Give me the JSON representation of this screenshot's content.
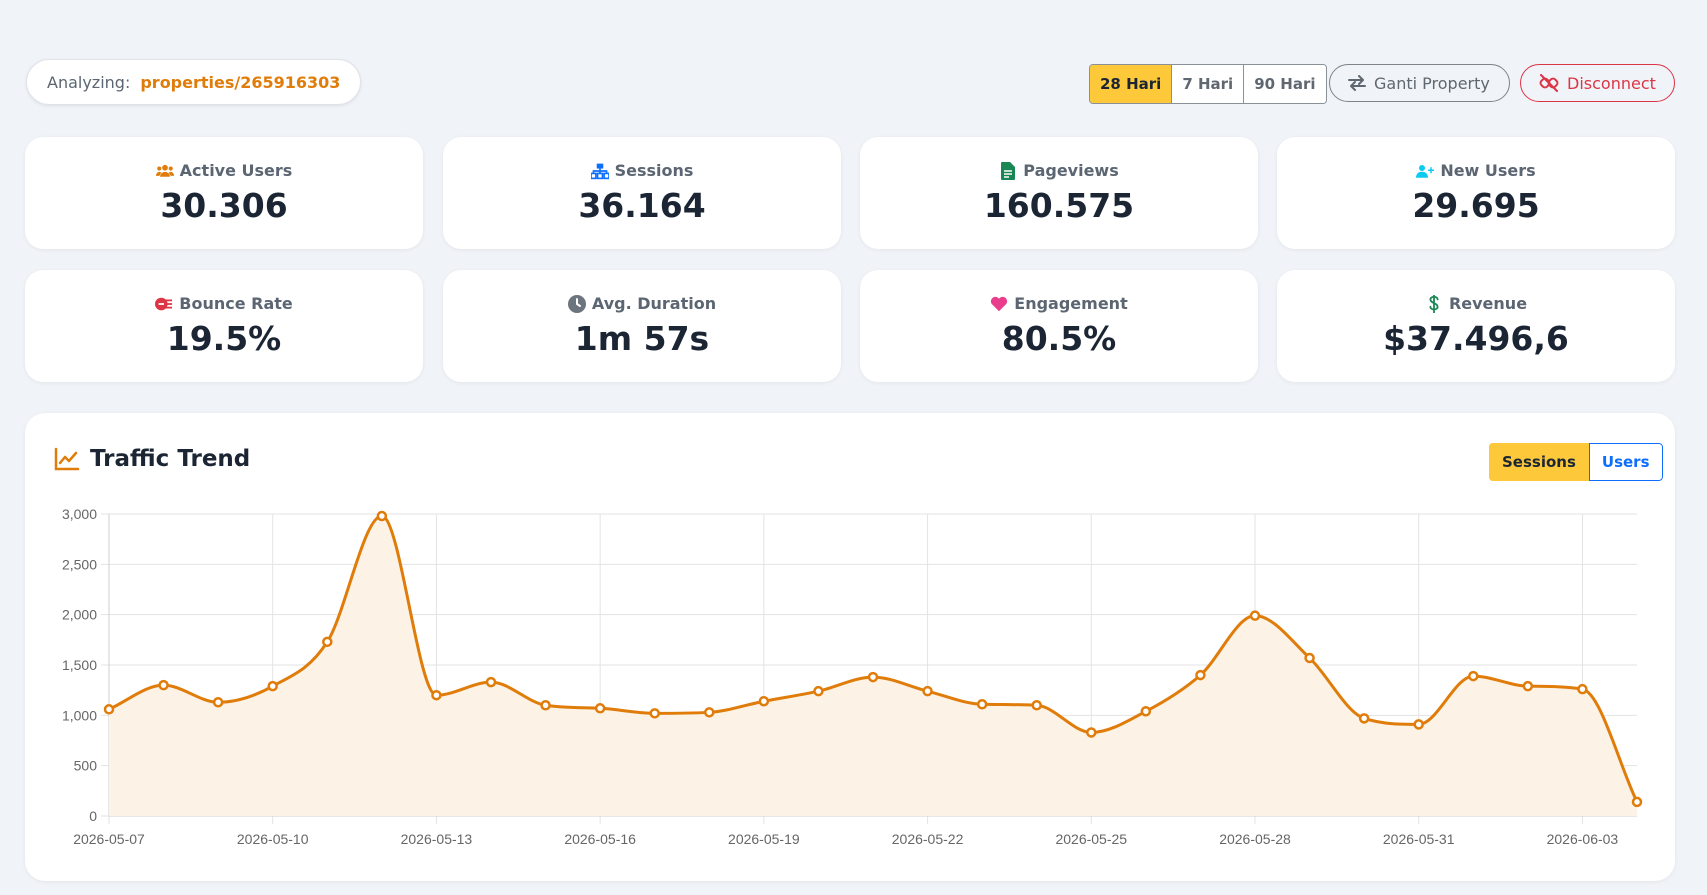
{
  "header": {
    "analyzing_label": "Analyzing:",
    "property": "properties/265916303",
    "ranges": [
      "28 Hari",
      "7 Hari",
      "90 Hari"
    ],
    "active_range": "28 Hari",
    "ganti_label": "Ganti Property",
    "disconnect_label": "Disconnect"
  },
  "stats": [
    {
      "label": "Active Users",
      "value": "30.306",
      "icon": "users-icon",
      "color": "#e07c0a"
    },
    {
      "label": "Sessions",
      "value": "36.164",
      "icon": "sitemap-icon",
      "color": "#0d6efd"
    },
    {
      "label": "Pageviews",
      "value": "160.575",
      "icon": "file-icon",
      "color": "#198754"
    },
    {
      "label": "New Users",
      "value": "29.695",
      "icon": "user-plus-icon",
      "color": "#0dcaf0"
    },
    {
      "label": "Bounce Rate",
      "value": "19.5%",
      "icon": "running-icon",
      "color": "#dc3545"
    },
    {
      "label": "Avg. Duration",
      "value": "1m 57s",
      "icon": "clock-icon",
      "color": "#6c757d"
    },
    {
      "label": "Engagement",
      "value": "80.5%",
      "icon": "heart-icon",
      "color": "#e83e8c"
    },
    {
      "label": "Revenue",
      "value": "$37.496,6",
      "icon": "dollar-icon",
      "color": "#198754"
    }
  ],
  "trend": {
    "title": "Traffic Trend",
    "series_buttons": [
      "Sessions",
      "Users"
    ],
    "active_series": "Sessions"
  },
  "chart_data": {
    "type": "line",
    "title": "",
    "x": [
      "2026-05-07",
      "2026-05-08",
      "2026-05-09",
      "2026-05-10",
      "2026-05-11",
      "2026-05-12",
      "2026-05-13",
      "2026-05-14",
      "2026-05-15",
      "2026-05-16",
      "2026-05-17",
      "2026-05-18",
      "2026-05-19",
      "2026-05-20",
      "2026-05-21",
      "2026-05-22",
      "2026-05-23",
      "2026-05-24",
      "2026-05-25",
      "2026-05-26",
      "2026-05-27",
      "2026-05-28",
      "2026-05-29",
      "2026-05-30",
      "2026-05-31",
      "2026-06-01",
      "2026-06-02",
      "2026-06-03",
      "2026-06-04"
    ],
    "x_tick_labels": [
      "2026-05-07",
      "2026-05-10",
      "2026-05-13",
      "2026-05-16",
      "2026-05-19",
      "2026-05-22",
      "2026-05-25",
      "2026-05-28",
      "2026-05-31",
      "2026-06-03"
    ],
    "series": [
      {
        "values": [
          1060,
          1300,
          1130,
          1290,
          1730,
          2980,
          1200,
          1330,
          1100,
          1070,
          1020,
          1030,
          1140,
          1240,
          1380,
          1240,
          1110,
          1100,
          830,
          1040,
          1400,
          1990,
          1570,
          970,
          910,
          1390,
          1290,
          1260,
          140
        ],
        "color": "#e07c0a",
        "fill": "#fdf2e6"
      }
    ],
    "ylim": [
      0,
      3000
    ],
    "y_ticks": [
      0,
      500,
      1000,
      1500,
      2000,
      2500,
      3000
    ],
    "y_tick_labels": [
      "0",
      "500",
      "1,000",
      "1,500",
      "2,000",
      "2,500",
      "3,000"
    ],
    "grid": true,
    "xlabel": "",
    "ylabel": ""
  }
}
